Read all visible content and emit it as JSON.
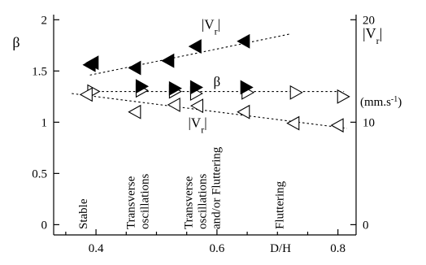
{
  "chart_data": {
    "type": "scatter",
    "title": "",
    "xlabel": "D/H",
    "ylabel_left": "β",
    "ylabel_right": "|V",
    "ylabel_right_sub": "r",
    "ylabel_right_close": "|",
    "ylabel_right_units": "(mm.s",
    "ylabel_right_units_sup": "-1",
    "ylabel_right_units_close": ")",
    "xlim": [
      0.33,
      0.83
    ],
    "ylim_left": [
      -0.1,
      2.05
    ],
    "ylim_right_scale": "right axis value = 10 × left axis value",
    "x_ticks": [
      {
        "value": 0.4,
        "label": "0.4"
      },
      {
        "value": 0.6,
        "label": "0.6"
      },
      {
        "value": 0.8,
        "label": "0.8"
      }
    ],
    "x_minor_ticks": [
      0.35,
      0.45,
      0.5,
      0.55,
      0.65,
      0.7,
      0.75
    ],
    "y_left_ticks": [
      {
        "value": 0,
        "label": "0"
      },
      {
        "value": 0.5,
        "label": "0.5"
      },
      {
        "value": 1,
        "label": "1"
      },
      {
        "value": 1.5,
        "label": "1.5"
      },
      {
        "value": 2,
        "label": "2"
      }
    ],
    "y_right_ticks": [
      {
        "value": 0,
        "label": "0"
      },
      {
        "value": 10,
        "label": "10"
      },
      {
        "value": 20,
        "label": "20"
      }
    ],
    "series": [
      {
        "label_text": "|V",
        "label_sub": "r",
        "label_close": "|",
        "marker": "filled-left-triangle",
        "points": [
          [
            0.39,
            1.56
          ],
          [
            0.395,
            1.58
          ],
          [
            0.465,
            1.53
          ],
          [
            0.52,
            1.6
          ],
          [
            0.565,
            1.74
          ],
          [
            0.645,
            1.79
          ]
        ],
        "fit": [
          [
            0.39,
            1.46
          ],
          [
            0.72,
            1.86
          ]
        ],
        "label_at": [
          0.59,
          1.91
        ]
      },
      {
        "label_text": "β",
        "marker": "open-right-triangle",
        "points": [
          [
            0.395,
            1.3
          ],
          [
            0.475,
            1.31
          ],
          [
            0.53,
            1.3
          ],
          [
            0.565,
            1.28
          ],
          [
            0.65,
            1.29
          ],
          [
            0.73,
            1.29
          ],
          [
            0.808,
            1.25
          ]
        ],
        "fit": [
          [
            0.395,
            1.3
          ],
          [
            0.81,
            1.3
          ]
        ],
        "label_at": [
          0.6,
          1.35
        ]
      },
      {
        "label_text": "|V",
        "label_sub": "r",
        "label_close": "|",
        "marker": "open-left-triangle",
        "points": [
          [
            0.385,
            1.27
          ],
          [
            0.465,
            1.1
          ],
          [
            0.53,
            1.17
          ],
          [
            0.568,
            1.16
          ],
          [
            0.645,
            1.1
          ],
          [
            0.727,
            0.99
          ],
          [
            0.8,
            0.97
          ]
        ],
        "fit": [
          [
            0.36,
            1.28
          ],
          [
            0.815,
            0.94
          ]
        ],
        "label_at": [
          0.568,
          0.95
        ]
      },
      {
        "label_text": "",
        "marker": "filled-right-triangle",
        "points": [
          [
            0.475,
            1.35
          ],
          [
            0.53,
            1.33
          ],
          [
            0.565,
            1.34
          ],
          [
            0.648,
            1.34
          ]
        ]
      }
    ],
    "regimes": [
      {
        "lines": [
          "Stable"
        ],
        "x": 0.385
      },
      {
        "lines": [
          "Transverse",
          "oscillations"
        ],
        "x": 0.475
      },
      {
        "lines": [
          "Transverse",
          "oscillations",
          "and/or Fluttering"
        ],
        "x": 0.582
      },
      {
        "lines": [
          "Fluttering"
        ],
        "x": 0.71
      }
    ],
    "grid": false,
    "legend": "none"
  }
}
